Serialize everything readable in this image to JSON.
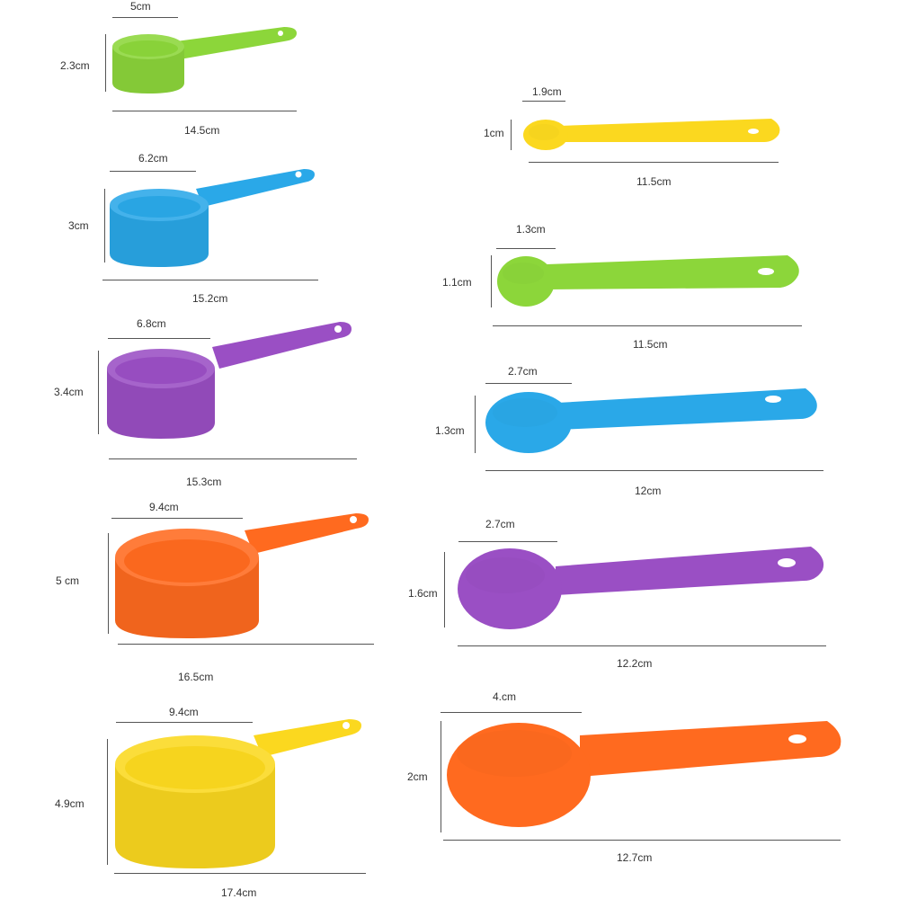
{
  "colors": {
    "green": "#8cd63a",
    "blue": "#2aa8e8",
    "purple": "#9a4fc4",
    "orange": "#ff6a1f",
    "yellow": "#fbd81f",
    "guide": "#555555"
  },
  "cups": [
    {
      "color": "green",
      "diameter": "5cm",
      "height": "2.3cm",
      "length": "14.5cm"
    },
    {
      "color": "blue",
      "diameter": "6.2cm",
      "height": "3cm",
      "length": "15.2cm"
    },
    {
      "color": "purple",
      "diameter": "6.8cm",
      "height": "3.4cm",
      "length": "15.3cm"
    },
    {
      "color": "orange",
      "diameter": "9.4cm",
      "height": "5 cm",
      "length": "16.5cm"
    },
    {
      "color": "yellow",
      "diameter": "9.4cm",
      "height": "4.9cm",
      "length": "17.4cm"
    }
  ],
  "spoons": [
    {
      "color": "yellow",
      "diameter": "1.9cm",
      "height": "1cm",
      "length": "11.5cm"
    },
    {
      "color": "green",
      "diameter": "1.3cm",
      "height": "1.1cm",
      "length": "11.5cm"
    },
    {
      "color": "blue",
      "diameter": "2.7cm",
      "height": "1.3cm",
      "length": "12cm"
    },
    {
      "color": "purple",
      "diameter": "2.7cm",
      "height": "1.6cm",
      "length": "12.2cm"
    },
    {
      "color": "orange",
      "diameter": "4.cm",
      "height": "2cm",
      "length": "12.7cm"
    }
  ]
}
